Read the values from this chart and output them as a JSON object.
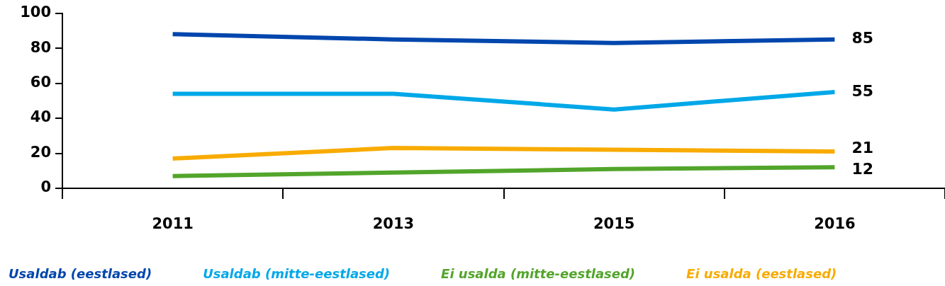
{
  "chart_data": {
    "type": "line",
    "categories": [
      "2011",
      "2013",
      "2015",
      "2016"
    ],
    "series": [
      {
        "name": "Usaldab (eestlased)",
        "color": "#0046ad",
        "values": [
          88,
          85,
          83,
          85
        ],
        "value_labels": [
          null,
          null,
          null,
          "85"
        ]
      },
      {
        "name": "Usaldab (mitte-eestlased)",
        "color": "#00a8e8",
        "values": [
          54,
          54,
          45,
          55
        ],
        "value_labels": [
          null,
          null,
          null,
          "55"
        ]
      },
      {
        "name": "Ei usalda (mitte-eestlased)",
        "color": "#52a52b",
        "values": [
          7,
          9,
          11,
          12
        ],
        "value_labels": [
          null,
          null,
          null,
          "12"
        ]
      },
      {
        "name": "Ei usalda (eestlased)",
        "color": "#f8ab00",
        "values": [
          17,
          23,
          22,
          21
        ],
        "value_labels": [
          null,
          null,
          null,
          "21"
        ]
      }
    ],
    "ylim": [
      0,
      100
    ],
    "yticks": [
      0,
      20,
      40,
      60,
      80,
      100
    ],
    "legend": "bottom"
  }
}
